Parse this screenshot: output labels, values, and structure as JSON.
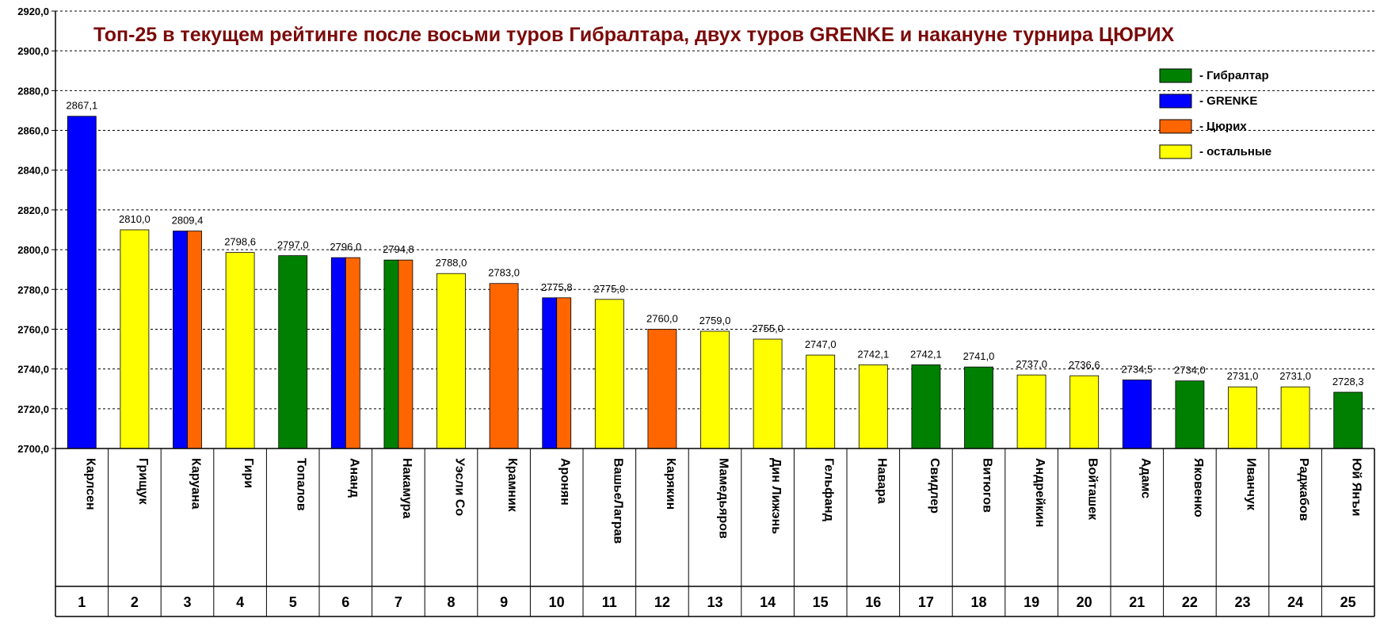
{
  "chart_data": {
    "type": "bar",
    "title": "Топ-25 в текущем рейтинге после восьми туров Гибралтара, двух туров GRENKE и накануне турнира ЦЮРИХ",
    "ylim": [
      2700,
      2920
    ],
    "ytick_step": 20,
    "yticks": [
      "2700,0",
      "2720,0",
      "2740,0",
      "2760,0",
      "2780,0",
      "2800,0",
      "2820,0",
      "2840,0",
      "2860,0",
      "2880,0",
      "2900,0",
      "2920,0"
    ],
    "grid": true,
    "legend_position": "top-right",
    "colors": {
      "gibraltar": "#008000",
      "grenke": "#0000ff",
      "zurich": "#ff6600",
      "other": "#ffff00"
    },
    "legend": [
      {
        "key": "gibraltar",
        "label": "- Гибралтар"
      },
      {
        "key": "grenke",
        "label": "- GRENKE"
      },
      {
        "key": "zurich",
        "label": "- Цюрих"
      },
      {
        "key": "other",
        "label": "- остальные"
      }
    ],
    "players": [
      {
        "rank": "1",
        "name": "Карлсен",
        "value": 2867.1,
        "label": "2867,1",
        "groups": [
          "grenke"
        ]
      },
      {
        "rank": "2",
        "name": "Грищук",
        "value": 2810.0,
        "label": "2810,0",
        "groups": [
          "other"
        ]
      },
      {
        "rank": "3",
        "name": "Каруана",
        "value": 2809.4,
        "label": "2809,4",
        "groups": [
          "grenke",
          "zurich"
        ]
      },
      {
        "rank": "4",
        "name": "Гири",
        "value": 2798.6,
        "label": "2798,6",
        "groups": [
          "other"
        ]
      },
      {
        "rank": "5",
        "name": "Топалов",
        "value": 2797.0,
        "label": "2797,0",
        "groups": [
          "gibraltar"
        ]
      },
      {
        "rank": "6",
        "name": "Ананд",
        "value": 2796.0,
        "label": "2796,0",
        "groups": [
          "grenke",
          "zurich"
        ]
      },
      {
        "rank": "7",
        "name": "Накамура",
        "value": 2794.8,
        "label": "2794,8",
        "groups": [
          "gibraltar",
          "zurich"
        ]
      },
      {
        "rank": "8",
        "name": "Уэсли Со",
        "value": 2788.0,
        "label": "2788,0",
        "groups": [
          "other"
        ]
      },
      {
        "rank": "9",
        "name": "Крамник",
        "value": 2783.0,
        "label": "2783,0",
        "groups": [
          "zurich"
        ]
      },
      {
        "rank": "10",
        "name": "Аронян",
        "value": 2775.8,
        "label": "2775,8",
        "groups": [
          "grenke",
          "zurich"
        ]
      },
      {
        "rank": "11",
        "name": "ВашьеЛаграв",
        "value": 2775.0,
        "label": "2775,0",
        "groups": [
          "other"
        ]
      },
      {
        "rank": "12",
        "name": "Карякин",
        "value": 2760.0,
        "label": "2760,0",
        "groups": [
          "zurich"
        ]
      },
      {
        "rank": "13",
        "name": "Мамедьяров",
        "value": 2759.0,
        "label": "2759,0",
        "groups": [
          "other"
        ]
      },
      {
        "rank": "14",
        "name": "Дин Лижэнь",
        "value": 2755.0,
        "label": "2755,0",
        "groups": [
          "other"
        ]
      },
      {
        "rank": "15",
        "name": "Гельфанд",
        "value": 2747.0,
        "label": "2747,0",
        "groups": [
          "other"
        ]
      },
      {
        "rank": "16",
        "name": "Навара",
        "value": 2742.1,
        "label": "2742,1",
        "groups": [
          "other"
        ]
      },
      {
        "rank": "17",
        "name": "Свидлер",
        "value": 2742.1,
        "label": "2742,1",
        "groups": [
          "gibraltar"
        ]
      },
      {
        "rank": "18",
        "name": "Витюгов",
        "value": 2741.0,
        "label": "2741,0",
        "groups": [
          "gibraltar"
        ]
      },
      {
        "rank": "19",
        "name": "Андрейкин",
        "value": 2737.0,
        "label": "2737,0",
        "groups": [
          "other"
        ]
      },
      {
        "rank": "20",
        "name": "Войташек",
        "value": 2736.6,
        "label": "2736,6",
        "groups": [
          "other"
        ]
      },
      {
        "rank": "21",
        "name": "Адамс",
        "value": 2734.5,
        "label": "2734,5",
        "groups": [
          "grenke"
        ]
      },
      {
        "rank": "22",
        "name": "Яковенко",
        "value": 2734.0,
        "label": "2734,0",
        "groups": [
          "gibraltar"
        ]
      },
      {
        "rank": "23",
        "name": "Иванчук",
        "value": 2731.0,
        "label": "2731,0",
        "groups": [
          "other"
        ]
      },
      {
        "rank": "24",
        "name": "Раджабов",
        "value": 2731.0,
        "label": "2731,0",
        "groups": [
          "other"
        ]
      },
      {
        "rank": "25",
        "name": "Юй Янъи",
        "value": 2728.3,
        "label": "2728,3",
        "groups": [
          "gibraltar"
        ]
      }
    ]
  }
}
